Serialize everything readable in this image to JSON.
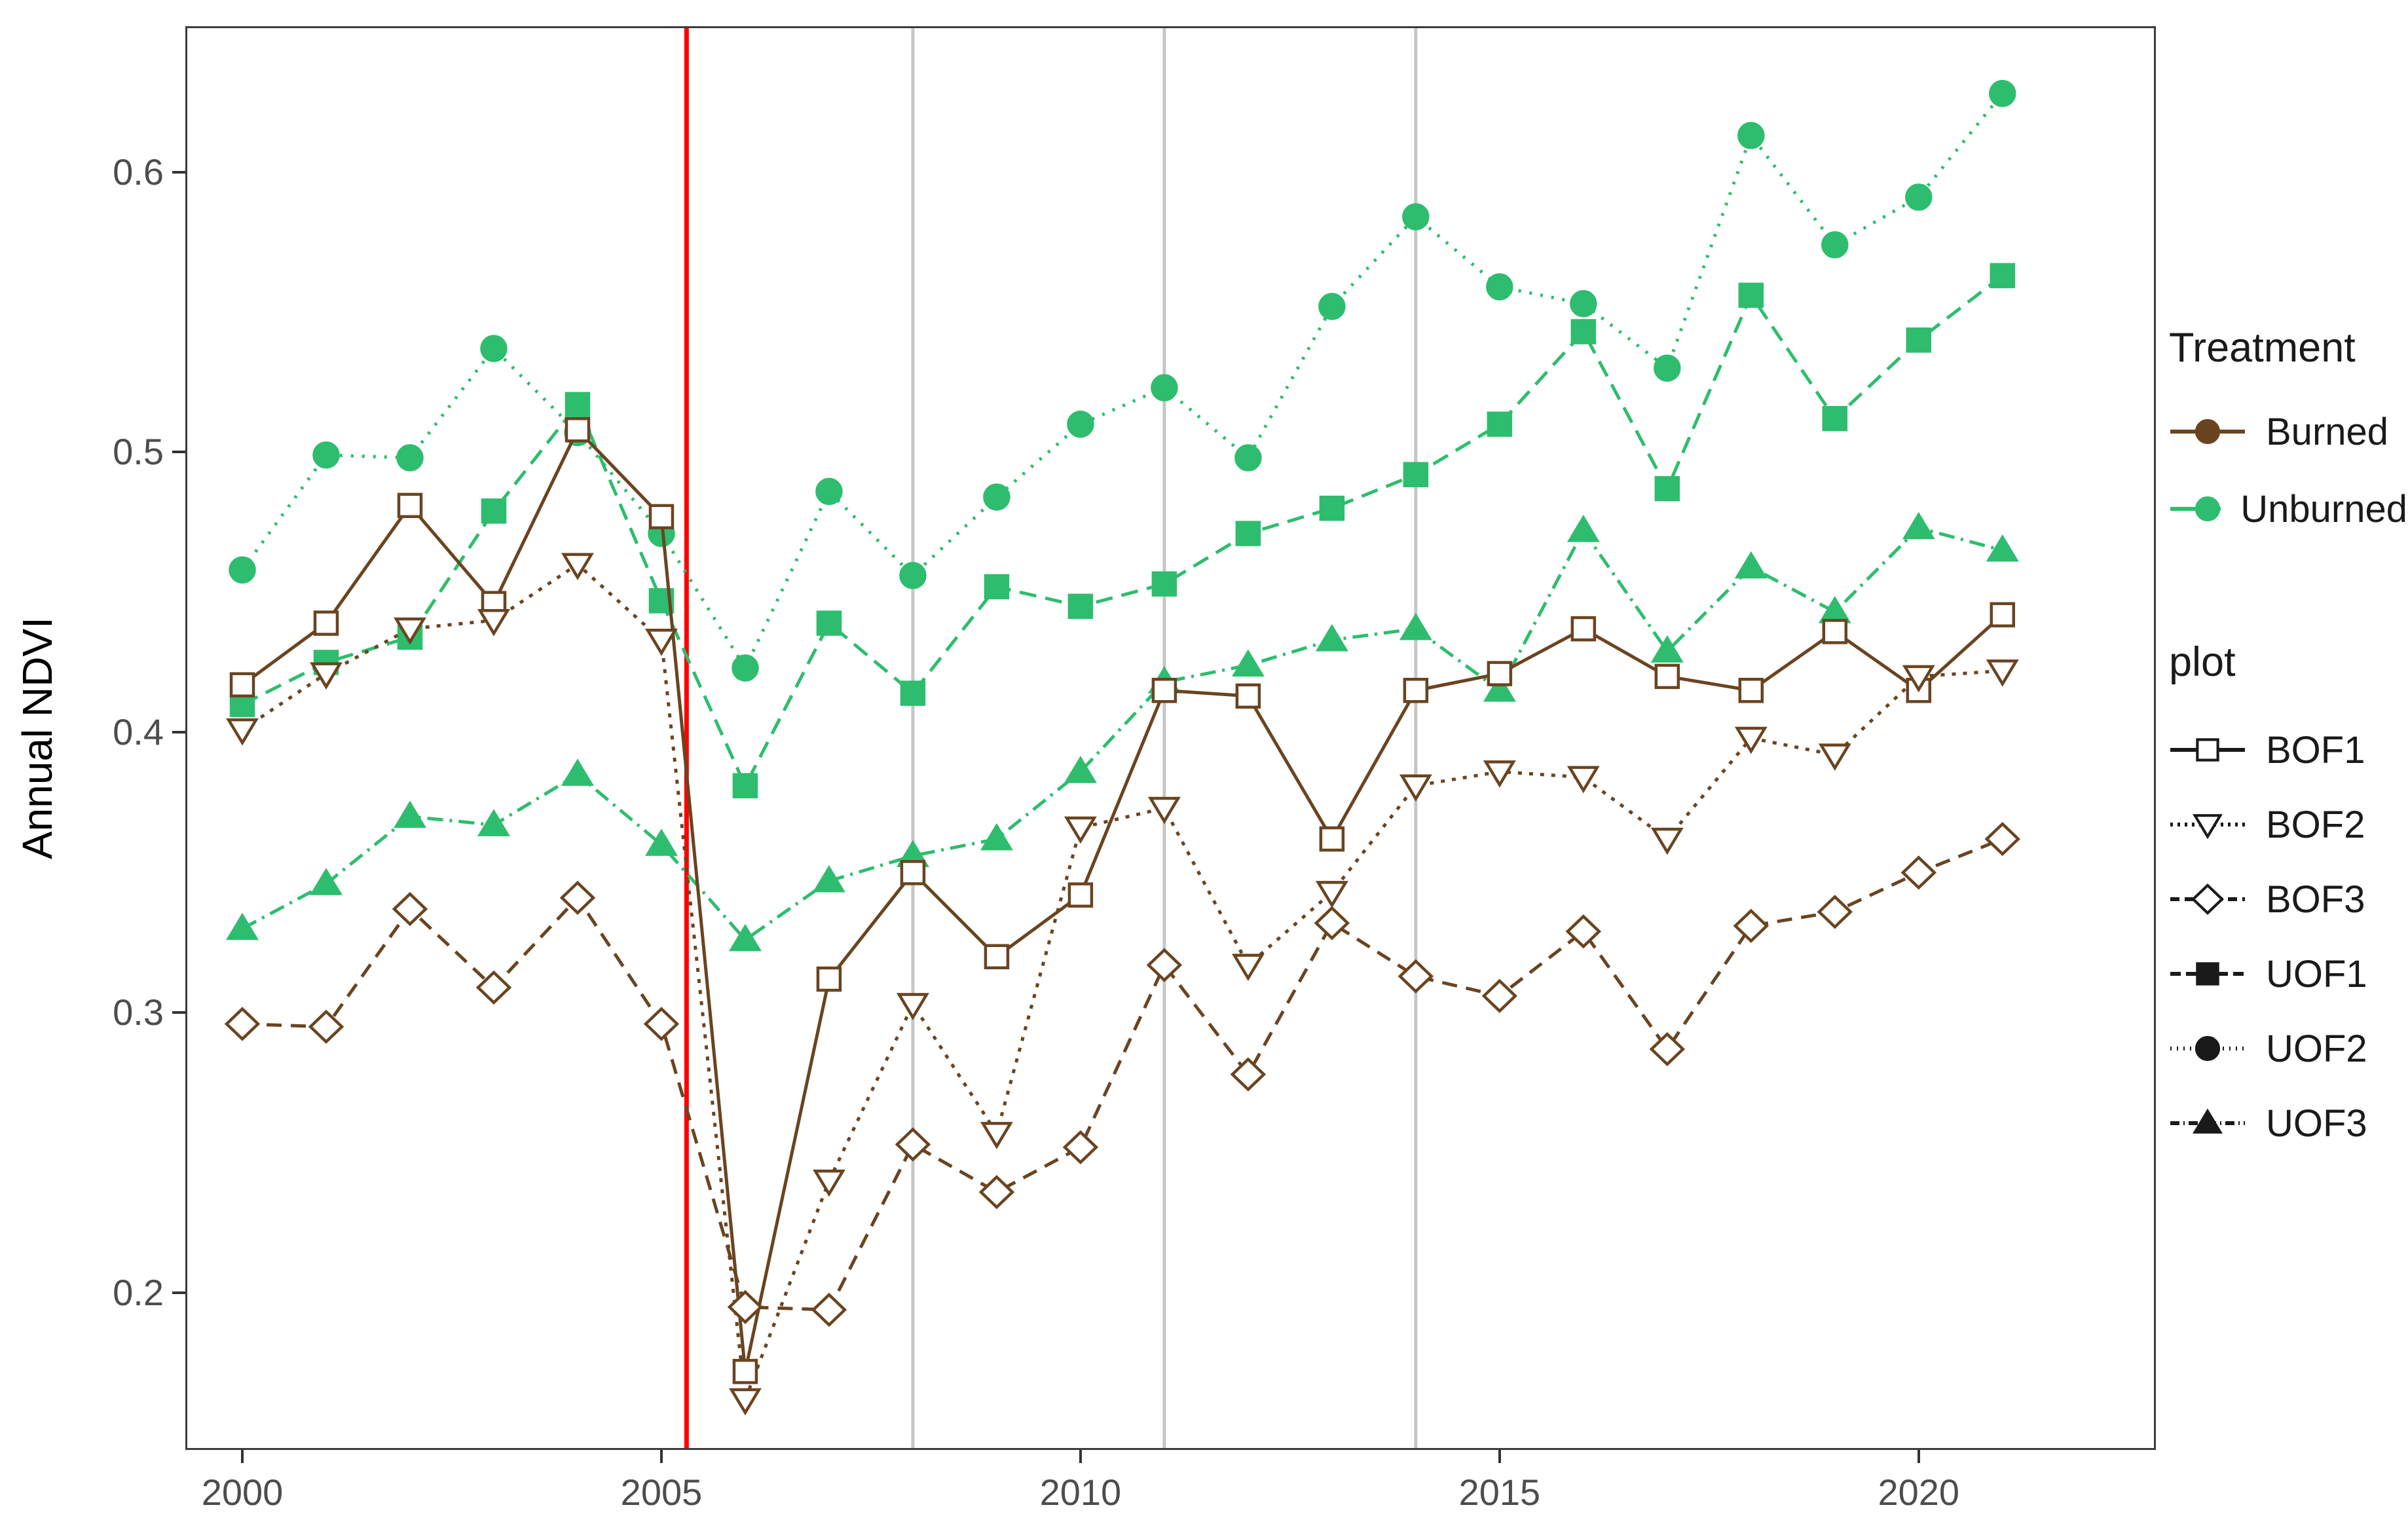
{
  "figure": {
    "y_axis_title": "Annual NDVI",
    "background": "#FFFFFF",
    "panel_border_color": "#3C3C3C",
    "tick_color": "#333333",
    "tick_label_color": "#4D4D4D"
  },
  "axes": {
    "y_ticks": [
      {
        "value": 0.2,
        "label": "0.2"
      },
      {
        "value": 0.3,
        "label": "0.3"
      },
      {
        "value": 0.4,
        "label": "0.4"
      },
      {
        "value": 0.5,
        "label": "0.5"
      },
      {
        "value": 0.6,
        "label": "0.6"
      }
    ],
    "x_ticks": [
      {
        "value": 2000,
        "label": "2000"
      },
      {
        "value": 2005,
        "label": "2005"
      },
      {
        "value": 2010,
        "label": "2010"
      },
      {
        "value": 2015,
        "label": "2015"
      },
      {
        "value": 2020,
        "label": "2020"
      }
    ]
  },
  "legend": {
    "treatment": {
      "title": "Treatment",
      "items": [
        {
          "label": "Burned",
          "color": "#6A4420",
          "marker": "circle",
          "dash": ""
        },
        {
          "label": "Unburned",
          "color": "#2EBD6E",
          "marker": "circle",
          "dash": ""
        }
      ]
    },
    "plot": {
      "title": "plot",
      "key_color": "#1a1a1a",
      "items": [
        {
          "label": "BOF1"
        },
        {
          "label": "BOF2"
        },
        {
          "label": "BOF3"
        },
        {
          "label": "UOF1"
        },
        {
          "label": "UOF2"
        },
        {
          "label": "UOF3"
        }
      ]
    }
  },
  "chart_data": {
    "type": "line",
    "title": "",
    "xlabel": "",
    "ylabel": "Annual NDVI",
    "grid": "off",
    "legend_position": "right",
    "xlim": [
      1999.32,
      2022.83
    ],
    "ylim": [
      0.144,
      0.652
    ],
    "x_years": [
      2000,
      2001,
      2002,
      2003,
      2004,
      2005,
      2006,
      2007,
      2008,
      2009,
      2010,
      2011,
      2012,
      2013,
      2014,
      2015,
      2016,
      2017,
      2018,
      2019,
      2020,
      2021
    ],
    "vlines": [
      {
        "x": 2005.3,
        "color": "#FF0000",
        "width": 7,
        "name": "fire-event-line"
      },
      {
        "x": 2008,
        "color": "#C6C6C6",
        "width": 5,
        "name": "reference-line-2008"
      },
      {
        "x": 2011,
        "color": "#C6C6C6",
        "width": 5,
        "name": "reference-line-2011"
      },
      {
        "x": 2014,
        "color": "#C6C6C6",
        "width": 5,
        "name": "reference-line-2014"
      }
    ],
    "series": [
      {
        "name": "BOF1",
        "treatment": "Burned",
        "color": "#6A4420",
        "marker": "square-open",
        "dash": "",
        "values": [
          0.417,
          0.439,
          0.481,
          0.446,
          0.508,
          0.477,
          0.172,
          0.312,
          0.35,
          0.32,
          0.342,
          0.415,
          0.413,
          0.362,
          0.415,
          0.421,
          0.437,
          0.42,
          0.415,
          0.436,
          0.415,
          0.442
        ]
      },
      {
        "name": "BOF2",
        "treatment": "Burned",
        "color": "#6A4420",
        "marker": "triangle-down-open",
        "dash": "6 11",
        "values": [
          0.401,
          0.421,
          0.437,
          0.44,
          0.46,
          0.433,
          0.162,
          0.24,
          0.303,
          0.257,
          0.366,
          0.373,
          0.317,
          0.343,
          0.381,
          0.386,
          0.384,
          0.362,
          0.398,
          0.392,
          0.42,
          0.422
        ]
      },
      {
        "name": "BOF3",
        "treatment": "Burned",
        "color": "#6A4420",
        "marker": "diamond-open",
        "dash": "23 14",
        "values": [
          0.296,
          0.295,
          0.337,
          0.309,
          0.341,
          0.296,
          0.195,
          0.194,
          0.253,
          0.236,
          0.252,
          0.317,
          0.278,
          0.332,
          0.313,
          0.306,
          0.329,
          0.287,
          0.331,
          0.336,
          0.35,
          0.362
        ]
      },
      {
        "name": "UOF1",
        "treatment": "Unburned",
        "color": "#2EBD6E",
        "marker": "square",
        "dash": "26 14",
        "values": [
          0.41,
          0.425,
          0.434,
          0.479,
          0.517,
          0.447,
          0.381,
          0.439,
          0.414,
          0.452,
          0.445,
          0.453,
          0.471,
          0.48,
          0.492,
          0.51,
          0.543,
          0.487,
          0.556,
          0.512,
          0.54,
          0.563
        ]
      },
      {
        "name": "UOF2",
        "treatment": "Unburned",
        "color": "#2EBD6E",
        "marker": "circle",
        "dash": "4 13",
        "values": [
          0.458,
          0.499,
          0.498,
          0.537,
          0.507,
          0.471,
          0.423,
          0.486,
          0.456,
          0.484,
          0.51,
          0.523,
          0.498,
          0.552,
          0.584,
          0.559,
          0.553,
          0.53,
          0.613,
          0.574,
          0.591,
          0.628
        ]
      },
      {
        "name": "UOF3",
        "treatment": "Unburned",
        "color": "#2EBD6E",
        "marker": "triangle-up",
        "dash": "24 10 4 10",
        "values": [
          0.33,
          0.346,
          0.37,
          0.367,
          0.385,
          0.36,
          0.326,
          0.347,
          0.356,
          0.362,
          0.386,
          0.418,
          0.424,
          0.433,
          0.437,
          0.415,
          0.472,
          0.429,
          0.459,
          0.443,
          0.473,
          0.465
        ]
      }
    ]
  }
}
